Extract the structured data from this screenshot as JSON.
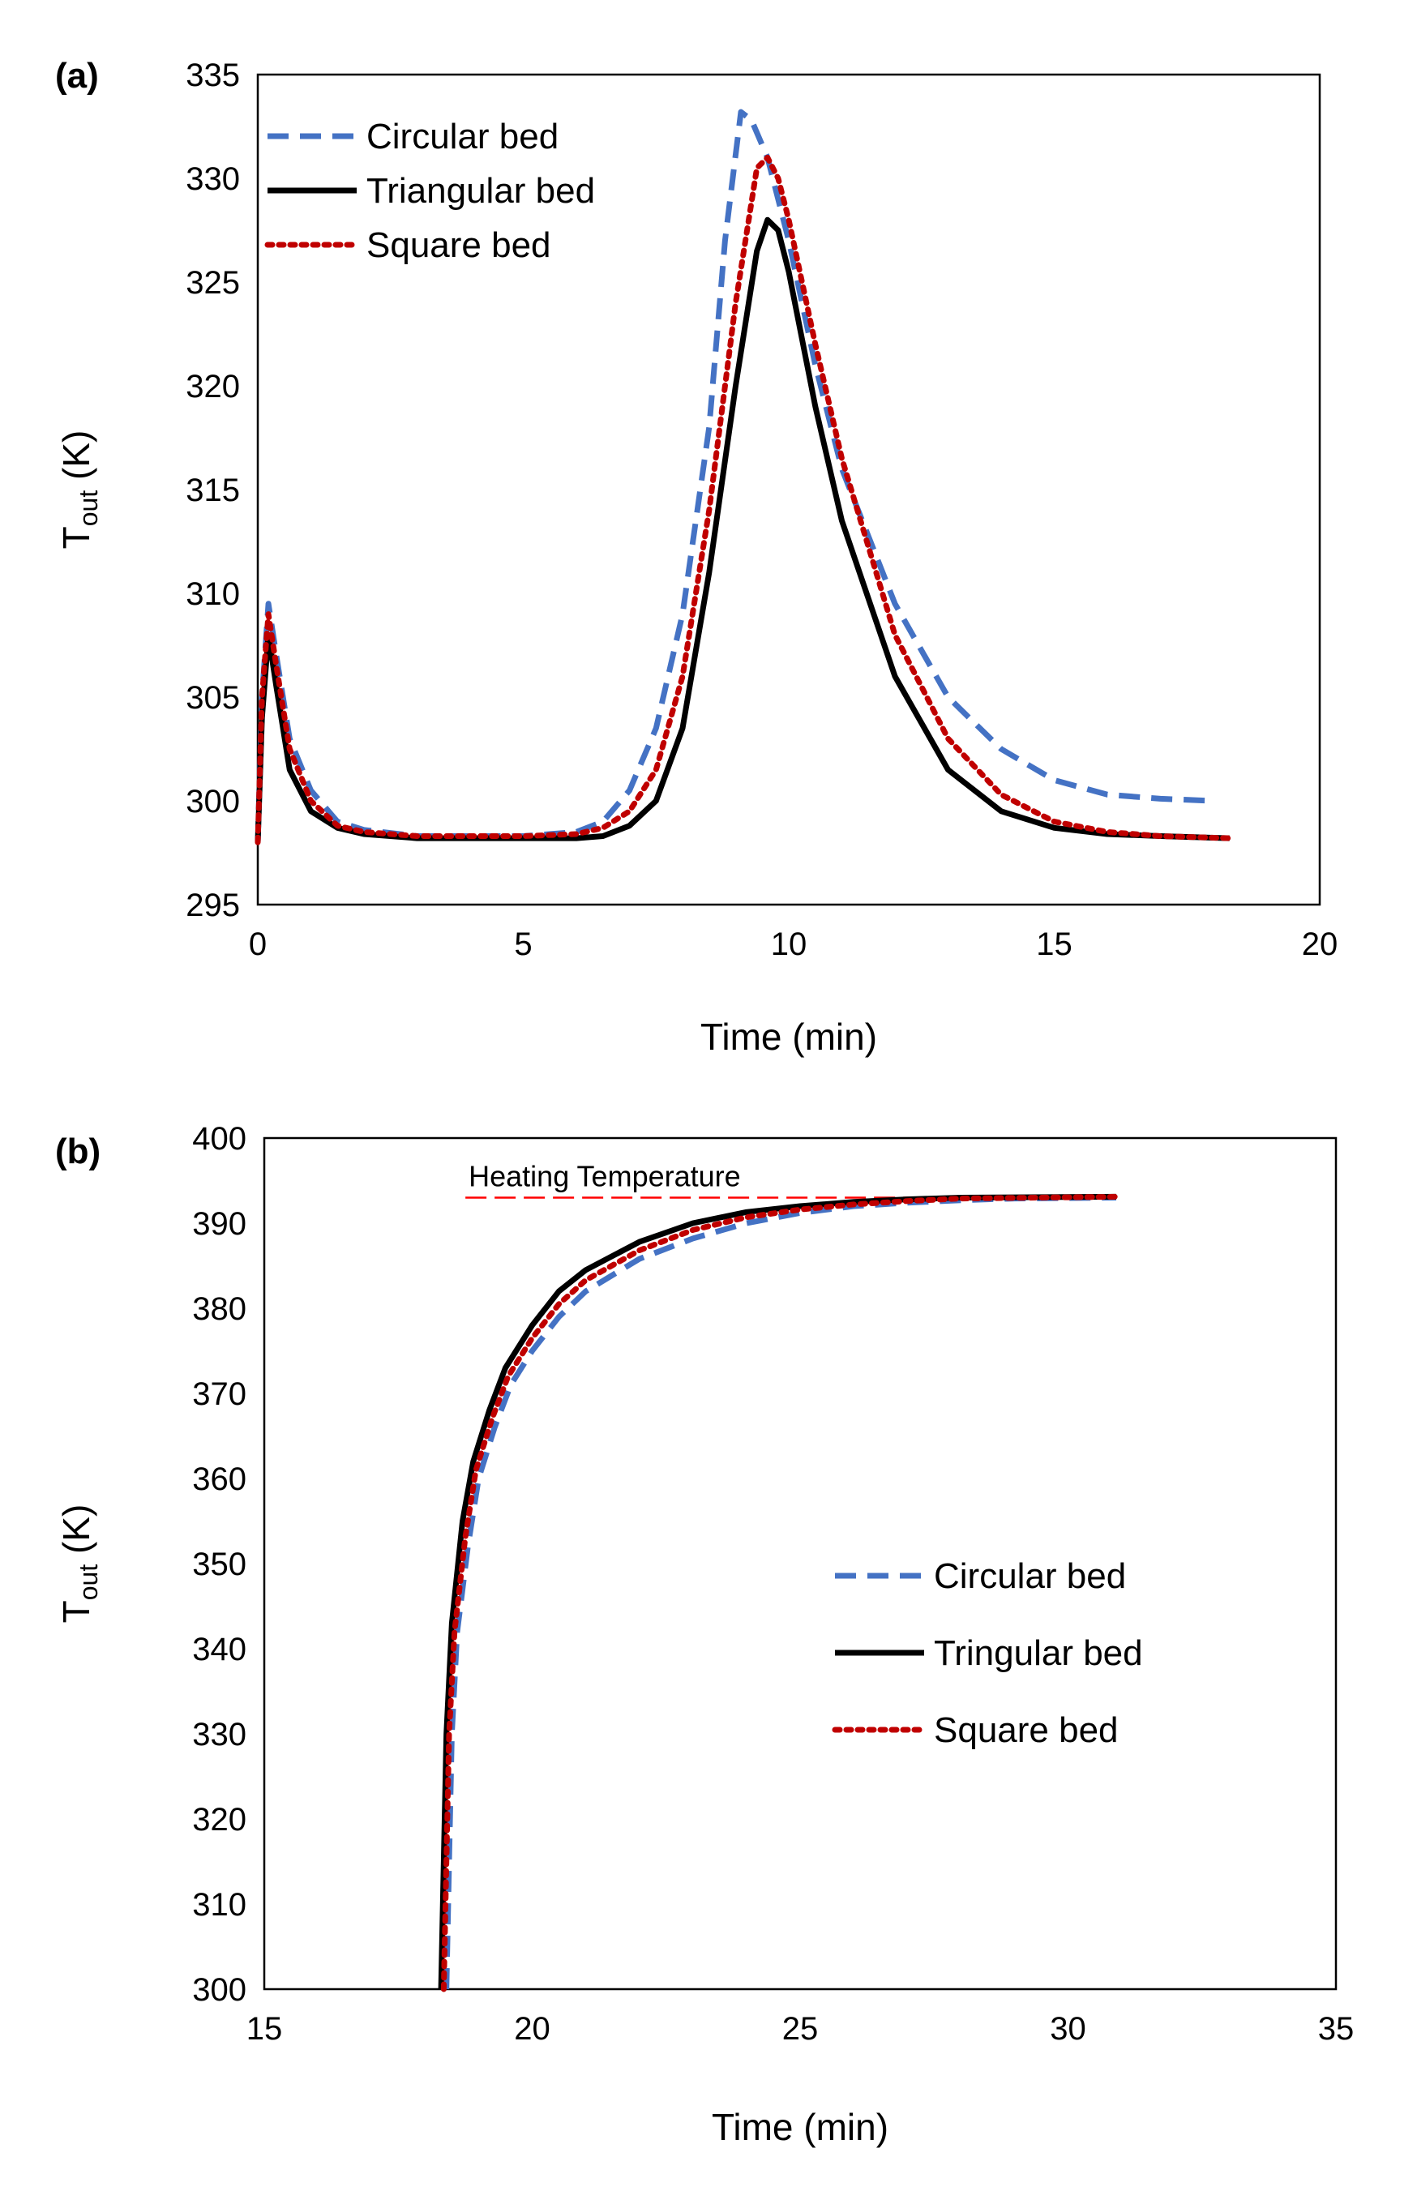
{
  "chart_data": [
    {
      "type": "line",
      "panel_label": "(a)",
      "xlabel": "Time (min)",
      "ylabel_main": "T",
      "ylabel_sub": "out",
      "ylabel_unit": " (K)",
      "xlim": [
        0,
        20
      ],
      "ylim": [
        295,
        335
      ],
      "xticks": [
        0,
        5,
        10,
        15,
        20
      ],
      "yticks": [
        295,
        300,
        305,
        310,
        315,
        320,
        325,
        330,
        335
      ],
      "legend": "top-left",
      "series": [
        {
          "name": "Circular bed",
          "color": "#4472C4",
          "style": "dashed",
          "points": [
            [
              0,
              298
            ],
            [
              0.08,
              305
            ],
            [
              0.2,
              309.5
            ],
            [
              0.35,
              307
            ],
            [
              0.6,
              303
            ],
            [
              1.0,
              300.5
            ],
            [
              1.5,
              299
            ],
            [
              2,
              298.6
            ],
            [
              3,
              298.3
            ],
            [
              4,
              298.3
            ],
            [
              5,
              298.3
            ],
            [
              6,
              298.5
            ],
            [
              6.5,
              299
            ],
            [
              7,
              300.5
            ],
            [
              7.5,
              303.5
            ],
            [
              8,
              309
            ],
            [
              8.5,
              318
            ],
            [
              8.8,
              327
            ],
            [
              9.1,
              333.2
            ],
            [
              9.3,
              332.8
            ],
            [
              9.6,
              331
            ],
            [
              10,
              327
            ],
            [
              10.5,
              321
            ],
            [
              11,
              316
            ],
            [
              12,
              309.5
            ],
            [
              13,
              305
            ],
            [
              14,
              302.5
            ],
            [
              15,
              301
            ],
            [
              16,
              300.3
            ],
            [
              17,
              300.1
            ],
            [
              18,
              300
            ]
          ]
        },
        {
          "name": "Triangular bed",
          "color": "#000000",
          "style": "solid",
          "points": [
            [
              0,
              298
            ],
            [
              0.08,
              304
            ],
            [
              0.2,
              308
            ],
            [
              0.35,
              305.5
            ],
            [
              0.6,
              301.5
            ],
            [
              1.0,
              299.5
            ],
            [
              1.5,
              298.7
            ],
            [
              2,
              298.4
            ],
            [
              3,
              298.2
            ],
            [
              4,
              298.2
            ],
            [
              5,
              298.2
            ],
            [
              6,
              298.2
            ],
            [
              6.5,
              298.3
            ],
            [
              7,
              298.8
            ],
            [
              7.5,
              300
            ],
            [
              8,
              303.5
            ],
            [
              8.5,
              311
            ],
            [
              9.0,
              320
            ],
            [
              9.4,
              326.5
            ],
            [
              9.6,
              328
            ],
            [
              9.8,
              327.5
            ],
            [
              10,
              325.5
            ],
            [
              10.5,
              319
            ],
            [
              11,
              313.5
            ],
            [
              12,
              306
            ],
            [
              13,
              301.5
            ],
            [
              14,
              299.5
            ],
            [
              15,
              298.7
            ],
            [
              16,
              298.4
            ],
            [
              17,
              298.3
            ],
            [
              18.3,
              298.2
            ]
          ]
        },
        {
          "name": "Square bed",
          "color": "#C00000",
          "style": "dotted",
          "points": [
            [
              0,
              298
            ],
            [
              0.08,
              305
            ],
            [
              0.2,
              309
            ],
            [
              0.35,
              306.5
            ],
            [
              0.6,
              302.5
            ],
            [
              1.0,
              300
            ],
            [
              1.5,
              298.8
            ],
            [
              2,
              298.5
            ],
            [
              3,
              298.3
            ],
            [
              4,
              298.3
            ],
            [
              5,
              298.3
            ],
            [
              6,
              298.4
            ],
            [
              6.5,
              298.7
            ],
            [
              7,
              299.5
            ],
            [
              7.5,
              301.5
            ],
            [
              8,
              306
            ],
            [
              8.5,
              314
            ],
            [
              9.0,
              324
            ],
            [
              9.4,
              330.5
            ],
            [
              9.6,
              331
            ],
            [
              9.8,
              330
            ],
            [
              10,
              328
            ],
            [
              10.5,
              322
            ],
            [
              11,
              316.5
            ],
            [
              12,
              308
            ],
            [
              13,
              303
            ],
            [
              14,
              300.3
            ],
            [
              15,
              299
            ],
            [
              16,
              298.5
            ],
            [
              17,
              298.3
            ],
            [
              18.3,
              298.2
            ]
          ]
        }
      ]
    },
    {
      "type": "line",
      "panel_label": "(b)",
      "xlabel": "Time (min)",
      "ylabel_main": "T",
      "ylabel_sub": "out",
      "ylabel_unit": " (K)",
      "xlim": [
        15,
        35
      ],
      "ylim": [
        300,
        400
      ],
      "xticks": [
        15,
        20,
        25,
        30,
        35
      ],
      "yticks": [
        300,
        310,
        320,
        330,
        340,
        350,
        360,
        370,
        380,
        390,
        400
      ],
      "legend": "center-right",
      "annotation": {
        "text": "Heating Temperature",
        "y": 393,
        "x_range": [
          18.3,
          30.9
        ],
        "color": "#FF0000"
      },
      "series": [
        {
          "name": "Circular bed",
          "color": "#4472C4",
          "style": "dashed",
          "points": [
            [
              18.4,
              300
            ],
            [
              18.45,
              315
            ],
            [
              18.5,
              330
            ],
            [
              18.6,
              342
            ],
            [
              18.8,
              352
            ],
            [
              19.0,
              360
            ],
            [
              19.3,
              366
            ],
            [
              19.6,
              371
            ],
            [
              20,
              375
            ],
            [
              20.5,
              379
            ],
            [
              21,
              382
            ],
            [
              22,
              385.8
            ],
            [
              23,
              388.2
            ],
            [
              24,
              390
            ],
            [
              25,
              391.2
            ],
            [
              26,
              392
            ],
            [
              27,
              392.4
            ],
            [
              28,
              392.7
            ],
            [
              29,
              392.9
            ],
            [
              30.9,
              393
            ]
          ]
        },
        {
          "name": "Tringular bed",
          "color": "#000000",
          "style": "solid",
          "points": [
            [
              18.3,
              300
            ],
            [
              18.35,
              315
            ],
            [
              18.4,
              330
            ],
            [
              18.5,
              343
            ],
            [
              18.7,
              355
            ],
            [
              18.9,
              362
            ],
            [
              19.2,
              368
            ],
            [
              19.5,
              373
            ],
            [
              20,
              378
            ],
            [
              20.5,
              382
            ],
            [
              21,
              384.5
            ],
            [
              22,
              387.8
            ],
            [
              23,
              390
            ],
            [
              24,
              391.3
            ],
            [
              25,
              392
            ],
            [
              26,
              392.5
            ],
            [
              27,
              392.8
            ],
            [
              28,
              393
            ],
            [
              30.9,
              393.1
            ]
          ]
        },
        {
          "name": "Square bed",
          "color": "#C00000",
          "style": "dotted",
          "points": [
            [
              18.35,
              300
            ],
            [
              18.4,
              315
            ],
            [
              18.45,
              330
            ],
            [
              18.55,
              342
            ],
            [
              18.75,
              353
            ],
            [
              18.95,
              361
            ],
            [
              19.25,
              367
            ],
            [
              19.55,
              372
            ],
            [
              20,
              376.5
            ],
            [
              20.5,
              380.5
            ],
            [
              21,
              383.3
            ],
            [
              22,
              386.8
            ],
            [
              23,
              389.2
            ],
            [
              24,
              390.7
            ],
            [
              25,
              391.6
            ],
            [
              26,
              392.2
            ],
            [
              27,
              392.6
            ],
            [
              28,
              392.9
            ],
            [
              30.9,
              393.1
            ]
          ]
        }
      ]
    }
  ]
}
